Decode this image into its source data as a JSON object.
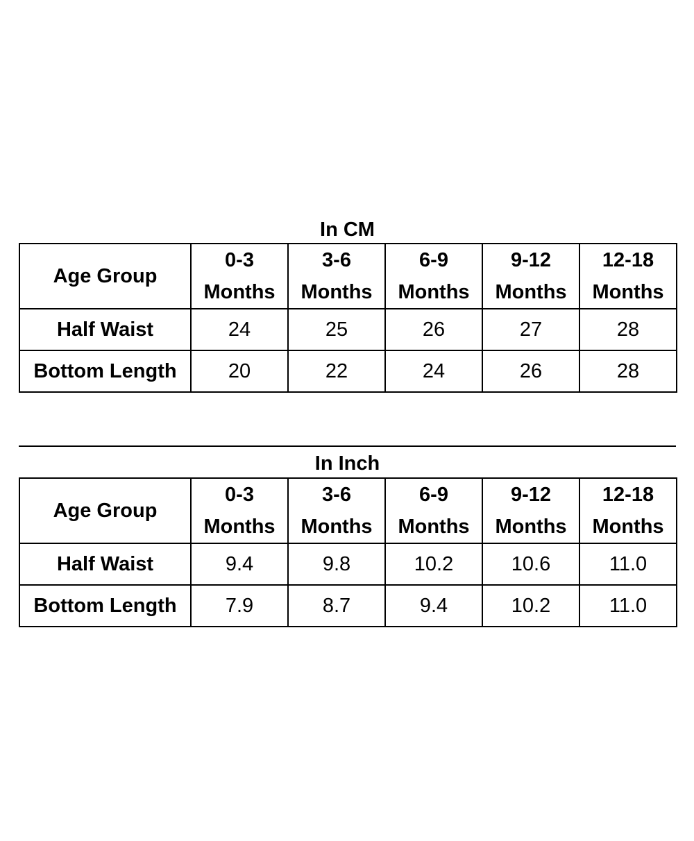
{
  "tables": [
    {
      "caption": "In CM",
      "header_label": "Age Group",
      "columns": [
        {
          "top": "0-3",
          "bottom": "Months"
        },
        {
          "top": "3-6",
          "bottom": "Months"
        },
        {
          "top": "6-9",
          "bottom": "Months"
        },
        {
          "top": "9-12",
          "bottom": "Months"
        },
        {
          "top": "12-18",
          "bottom": "Months"
        }
      ],
      "rows": [
        {
          "label": "Half Waist",
          "values": [
            "24",
            "25",
            "26",
            "27",
            "28"
          ]
        },
        {
          "label": "Bottom Length",
          "values": [
            "20",
            "22",
            "24",
            "26",
            "28"
          ]
        }
      ]
    },
    {
      "caption": "In Inch",
      "header_label": "Age Group",
      "columns": [
        {
          "top": "0-3",
          "bottom": "Months"
        },
        {
          "top": "3-6",
          "bottom": "Months"
        },
        {
          "top": "6-9",
          "bottom": "Months"
        },
        {
          "top": "9-12",
          "bottom": "Months"
        },
        {
          "top": "12-18",
          "bottom": "Months"
        }
      ],
      "rows": [
        {
          "label": "Half Waist",
          "values": [
            "9.4",
            "9.8",
            "10.2",
            "10.6",
            "11.0"
          ]
        },
        {
          "label": "Bottom Length",
          "values": [
            "7.9",
            "8.7",
            "9.4",
            "10.2",
            "11.0"
          ]
        }
      ]
    }
  ]
}
